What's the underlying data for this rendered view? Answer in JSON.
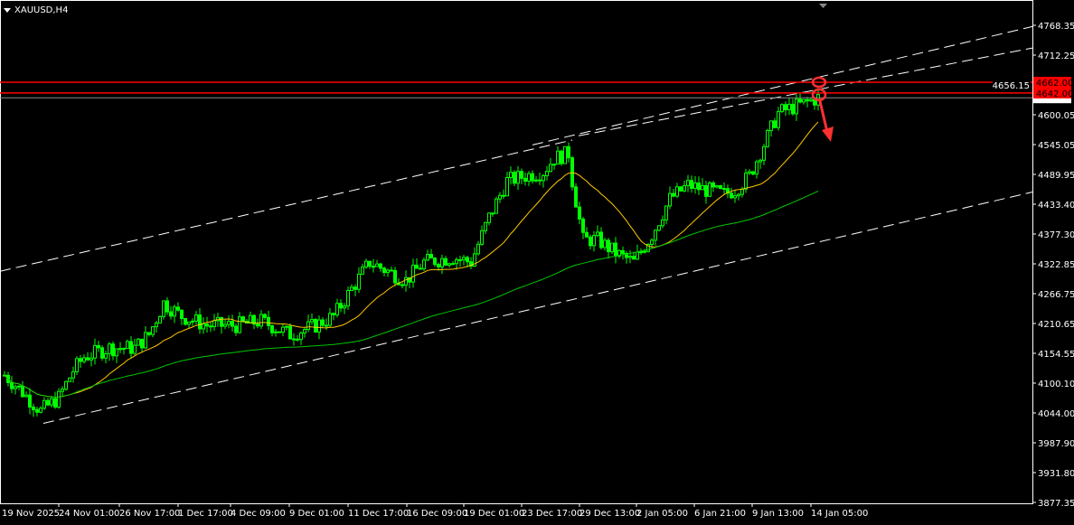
{
  "header": {
    "symbol_timeframe": "XAUUSD,H4"
  },
  "chart_data": {
    "type": "candlestick",
    "title": "XAUUSD,H4",
    "ylim": [
      3877.35,
      4768.35
    ],
    "y_ticks": [
      "4768.35",
      "4712.25",
      "4656.15",
      "4600.05",
      "4545.05",
      "4489.95",
      "4433.40",
      "4377.30",
      "4322.85",
      "4266.75",
      "4210.65",
      "4154.55",
      "4100.10",
      "4044.00",
      "3987.90",
      "3931.80",
      "3877.35"
    ],
    "x_ticks": [
      "19 Nov 2025",
      "24 Nov 01:00",
      "26 Nov 17:00",
      "1 Dec 17:00",
      "4 Dec 09:00",
      "9 Dec 01:00",
      "11 Dec 17:00",
      "16 Dec 09:00",
      "19 Dec 01:00",
      "23 Dec 17:00",
      "29 Dec 13:00",
      "2 Jan 05:00",
      "6 Jan 21:00",
      "9 Jan 13:00",
      "14 Jan 05:00"
    ],
    "approx_close_path": [
      [
        0,
        4115
      ],
      [
        4,
        4090
      ],
      [
        10,
        4048
      ],
      [
        15,
        4073
      ],
      [
        19,
        4124
      ],
      [
        22,
        4149
      ],
      [
        29,
        4166
      ],
      [
        36,
        4166
      ],
      [
        40,
        4191
      ],
      [
        44,
        4250
      ],
      [
        49,
        4225
      ],
      [
        56,
        4208
      ],
      [
        64,
        4208
      ],
      [
        71,
        4216
      ],
      [
        79,
        4191
      ],
      [
        86,
        4208
      ],
      [
        91,
        4225
      ],
      [
        96,
        4276
      ],
      [
        101,
        4326
      ],
      [
        106,
        4309
      ],
      [
        111,
        4292
      ],
      [
        116,
        4326
      ],
      [
        124,
        4335
      ],
      [
        129,
        4326
      ],
      [
        134,
        4410
      ],
      [
        139,
        4478
      ],
      [
        144,
        4487
      ],
      [
        149,
        4495
      ],
      [
        152,
        4520
      ],
      [
        156,
        4529
      ],
      [
        157,
        4478
      ],
      [
        160,
        4368
      ],
      [
        164,
        4368
      ],
      [
        169,
        4343
      ],
      [
        174,
        4326
      ],
      [
        179,
        4377
      ],
      [
        184,
        4444
      ],
      [
        189,
        4470
      ],
      [
        194,
        4461
      ],
      [
        199,
        4453
      ],
      [
        202,
        4461
      ],
      [
        206,
        4487
      ],
      [
        210,
        4546
      ],
      [
        214,
        4605
      ],
      [
        217,
        4613
      ],
      [
        221,
        4622
      ],
      [
        225,
        4633
      ]
    ],
    "horizontal_levels": [
      {
        "label": "4662.00",
        "price": 4662.0,
        "color": "#ff0000"
      },
      {
        "label": "4642.00",
        "price": 4642.0,
        "color": "#ff0000"
      }
    ],
    "current_price": 4633.0,
    "moving_averages": [
      {
        "color": "#ffc800",
        "period": 20
      },
      {
        "color": "#00c800",
        "period": 100
      }
    ],
    "trendlines": [
      {
        "from": [
          -1.25,
          4309
        ],
        "to": [
          157,
          4554
        ]
      },
      {
        "from": [
          146,
          4545
        ],
        "to": [
          284.25,
          4766
        ]
      },
      {
        "from": [
          158.75,
          4562
        ],
        "to": [
          284.25,
          4726
        ]
      },
      {
        "from": [
          10.75,
          4025
        ],
        "to": [
          284.25,
          4457
        ]
      }
    ],
    "colors": {
      "candle": "#00ff00",
      "background": "#000000",
      "axis": "#ffffff",
      "level": "#ff0000",
      "trendline": "#ffffff"
    },
    "grid": false
  }
}
